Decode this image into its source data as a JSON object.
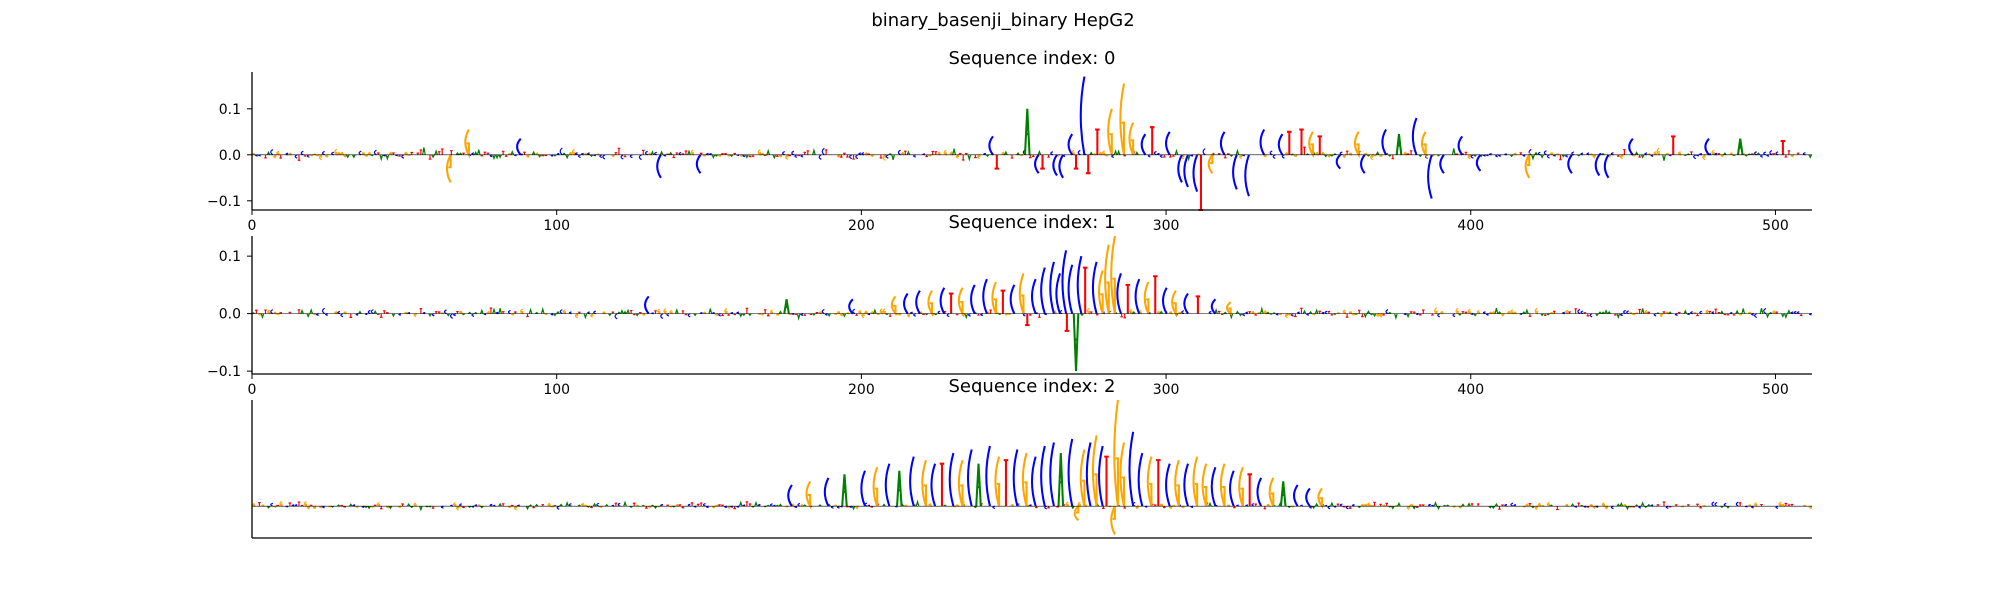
{
  "figure": {
    "title": "binary_basenji_binary HepG2"
  },
  "colors": {
    "A": "#008000",
    "C": "#0000ff",
    "G": "#ffa500",
    "T": "#ff0000",
    "axis": "#000000"
  },
  "chart_data": [
    {
      "type": "sequence-logo",
      "title": "Sequence index: 0",
      "xlim": [
        0,
        512
      ],
      "ylim": [
        -0.12,
        0.18
      ],
      "x_ticks": [
        0,
        100,
        200,
        300,
        400,
        500
      ],
      "y_ticks": [
        -0.1,
        0.0,
        0.1
      ],
      "y_tick_labels": [
        "−0.1",
        "0.0",
        "0.1"
      ],
      "grid": false,
      "length": 512,
      "background_amplitude": 0.012,
      "peaks": [
        {
          "x": 64,
          "value": -0.06,
          "base": "G"
        },
        {
          "x": 70,
          "value": 0.055,
          "base": "G"
        },
        {
          "x": 87,
          "value": 0.035,
          "base": "C"
        },
        {
          "x": 133,
          "value": -0.05,
          "base": "C"
        },
        {
          "x": 146,
          "value": -0.04,
          "base": "C"
        },
        {
          "x": 242,
          "value": 0.04,
          "base": "C"
        },
        {
          "x": 244,
          "value": -0.03,
          "base": "T"
        },
        {
          "x": 254,
          "value": 0.1,
          "base": "A"
        },
        {
          "x": 257,
          "value": -0.04,
          "base": "C"
        },
        {
          "x": 259,
          "value": -0.03,
          "base": "T"
        },
        {
          "x": 263,
          "value": -0.045,
          "base": "C"
        },
        {
          "x": 265,
          "value": -0.05,
          "base": "C"
        },
        {
          "x": 268,
          "value": 0.045,
          "base": "C"
        },
        {
          "x": 270,
          "value": -0.03,
          "base": "T"
        },
        {
          "x": 272,
          "value": 0.17,
          "base": "C"
        },
        {
          "x": 274,
          "value": -0.04,
          "base": "T"
        },
        {
          "x": 277,
          "value": 0.055,
          "base": "T"
        },
        {
          "x": 281,
          "value": 0.1,
          "base": "G"
        },
        {
          "x": 285,
          "value": 0.155,
          "base": "G"
        },
        {
          "x": 288,
          "value": 0.07,
          "base": "G"
        },
        {
          "x": 292,
          "value": 0.045,
          "base": "C"
        },
        {
          "x": 295,
          "value": 0.06,
          "base": "T"
        },
        {
          "x": 300,
          "value": 0.05,
          "base": "C"
        },
        {
          "x": 304,
          "value": -0.06,
          "base": "C"
        },
        {
          "x": 306,
          "value": -0.07,
          "base": "C"
        },
        {
          "x": 309,
          "value": -0.08,
          "base": "C"
        },
        {
          "x": 311,
          "value": -0.12,
          "base": "T"
        },
        {
          "x": 314,
          "value": -0.04,
          "base": "G"
        },
        {
          "x": 318,
          "value": 0.05,
          "base": "C"
        },
        {
          "x": 322,
          "value": -0.075,
          "base": "C"
        },
        {
          "x": 326,
          "value": -0.09,
          "base": "C"
        },
        {
          "x": 331,
          "value": 0.055,
          "base": "C"
        },
        {
          "x": 337,
          "value": 0.045,
          "base": "C"
        },
        {
          "x": 340,
          "value": 0.05,
          "base": "T"
        },
        {
          "x": 344,
          "value": 0.055,
          "base": "T"
        },
        {
          "x": 347,
          "value": 0.05,
          "base": "G"
        },
        {
          "x": 350,
          "value": 0.04,
          "base": "T"
        },
        {
          "x": 356,
          "value": -0.03,
          "base": "C"
        },
        {
          "x": 362,
          "value": 0.05,
          "base": "G"
        },
        {
          "x": 364,
          "value": -0.04,
          "base": "C"
        },
        {
          "x": 371,
          "value": 0.055,
          "base": "C"
        },
        {
          "x": 376,
          "value": 0.045,
          "base": "A"
        },
        {
          "x": 381,
          "value": 0.08,
          "base": "C"
        },
        {
          "x": 384,
          "value": 0.05,
          "base": "G"
        },
        {
          "x": 386,
          "value": -0.095,
          "base": "C"
        },
        {
          "x": 390,
          "value": -0.04,
          "base": "C"
        },
        {
          "x": 396,
          "value": 0.04,
          "base": "C"
        },
        {
          "x": 402,
          "value": -0.035,
          "base": "C"
        },
        {
          "x": 418,
          "value": -0.05,
          "base": "G"
        },
        {
          "x": 432,
          "value": -0.04,
          "base": "C"
        },
        {
          "x": 441,
          "value": -0.045,
          "base": "C"
        },
        {
          "x": 444,
          "value": -0.05,
          "base": "C"
        },
        {
          "x": 452,
          "value": 0.035,
          "base": "C"
        },
        {
          "x": 466,
          "value": 0.04,
          "base": "T"
        },
        {
          "x": 477,
          "value": 0.035,
          "base": "C"
        },
        {
          "x": 488,
          "value": 0.035,
          "base": "A"
        },
        {
          "x": 502,
          "value": 0.03,
          "base": "T"
        }
      ]
    },
    {
      "type": "sequence-logo",
      "title": "Sequence index: 1",
      "xlim": [
        0,
        512
      ],
      "ylim": [
        -0.105,
        0.135
      ],
      "x_ticks": [
        0,
        100,
        200,
        300,
        400,
        500
      ],
      "y_ticks": [
        -0.1,
        0.0,
        0.1
      ],
      "y_tick_labels": [
        "−0.1",
        "0.0",
        "0.1"
      ],
      "grid": false,
      "length": 512,
      "background_amplitude": 0.008,
      "peaks": [
        {
          "x": 129,
          "value": 0.03,
          "base": "C"
        },
        {
          "x": 175,
          "value": 0.025,
          "base": "A"
        },
        {
          "x": 196,
          "value": 0.025,
          "base": "C"
        },
        {
          "x": 210,
          "value": 0.03,
          "base": "G"
        },
        {
          "x": 214,
          "value": 0.035,
          "base": "C"
        },
        {
          "x": 218,
          "value": 0.04,
          "base": "C"
        },
        {
          "x": 222,
          "value": 0.04,
          "base": "G"
        },
        {
          "x": 226,
          "value": 0.045,
          "base": "C"
        },
        {
          "x": 229,
          "value": 0.035,
          "base": "T"
        },
        {
          "x": 232,
          "value": 0.045,
          "base": "G"
        },
        {
          "x": 236,
          "value": 0.05,
          "base": "C"
        },
        {
          "x": 240,
          "value": 0.06,
          "base": "C"
        },
        {
          "x": 243,
          "value": 0.055,
          "base": "G"
        },
        {
          "x": 246,
          "value": 0.04,
          "base": "T"
        },
        {
          "x": 249,
          "value": 0.05,
          "base": "C"
        },
        {
          "x": 252,
          "value": 0.07,
          "base": "G"
        },
        {
          "x": 254,
          "value": -0.02,
          "base": "T"
        },
        {
          "x": 256,
          "value": 0.06,
          "base": "C"
        },
        {
          "x": 259,
          "value": 0.08,
          "base": "C"
        },
        {
          "x": 262,
          "value": 0.09,
          "base": "C"
        },
        {
          "x": 264,
          "value": 0.07,
          "base": "C"
        },
        {
          "x": 266,
          "value": 0.11,
          "base": "C"
        },
        {
          "x": 267,
          "value": -0.03,
          "base": "T"
        },
        {
          "x": 268,
          "value": 0.085,
          "base": "C"
        },
        {
          "x": 270,
          "value": -0.1,
          "base": "A"
        },
        {
          "x": 271,
          "value": 0.1,
          "base": "C"
        },
        {
          "x": 273,
          "value": 0.08,
          "base": "T"
        },
        {
          "x": 276,
          "value": 0.09,
          "base": "C"
        },
        {
          "x": 278,
          "value": 0.075,
          "base": "G"
        },
        {
          "x": 280,
          "value": 0.12,
          "base": "G"
        },
        {
          "x": 282,
          "value": 0.135,
          "base": "G"
        },
        {
          "x": 284,
          "value": 0.07,
          "base": "C"
        },
        {
          "x": 287,
          "value": 0.05,
          "base": "T"
        },
        {
          "x": 290,
          "value": 0.06,
          "base": "C"
        },
        {
          "x": 293,
          "value": 0.055,
          "base": "G"
        },
        {
          "x": 296,
          "value": 0.065,
          "base": "T"
        },
        {
          "x": 299,
          "value": 0.045,
          "base": "C"
        },
        {
          "x": 302,
          "value": 0.04,
          "base": "G"
        },
        {
          "x": 306,
          "value": 0.035,
          "base": "C"
        },
        {
          "x": 310,
          "value": 0.03,
          "base": "T"
        },
        {
          "x": 315,
          "value": 0.025,
          "base": "C"
        },
        {
          "x": 320,
          "value": 0.02,
          "base": "G"
        }
      ]
    },
    {
      "type": "sequence-logo",
      "title": "Sequence index: 2",
      "xlim": [
        0,
        512
      ],
      "ylim": [
        -0.045,
        0.15
      ],
      "x_ticks": [],
      "y_ticks": [],
      "grid": false,
      "length": 512,
      "background_amplitude": 0.005,
      "peaks": [
        {
          "x": 176,
          "value": 0.03,
          "base": "C"
        },
        {
          "x": 182,
          "value": 0.035,
          "base": "G"
        },
        {
          "x": 188,
          "value": 0.04,
          "base": "C"
        },
        {
          "x": 194,
          "value": 0.045,
          "base": "A"
        },
        {
          "x": 200,
          "value": 0.05,
          "base": "C"
        },
        {
          "x": 204,
          "value": 0.055,
          "base": "G"
        },
        {
          "x": 208,
          "value": 0.06,
          "base": "C"
        },
        {
          "x": 212,
          "value": 0.05,
          "base": "A"
        },
        {
          "x": 216,
          "value": 0.07,
          "base": "C"
        },
        {
          "x": 220,
          "value": 0.065,
          "base": "G"
        },
        {
          "x": 223,
          "value": 0.06,
          "base": "C"
        },
        {
          "x": 226,
          "value": 0.06,
          "base": "T"
        },
        {
          "x": 229,
          "value": 0.075,
          "base": "C"
        },
        {
          "x": 232,
          "value": 0.065,
          "base": "G"
        },
        {
          "x": 235,
          "value": 0.08,
          "base": "C"
        },
        {
          "x": 238,
          "value": 0.06,
          "base": "A"
        },
        {
          "x": 241,
          "value": 0.085,
          "base": "C"
        },
        {
          "x": 244,
          "value": 0.07,
          "base": "G"
        },
        {
          "x": 247,
          "value": 0.065,
          "base": "T"
        },
        {
          "x": 250,
          "value": 0.08,
          "base": "C"
        },
        {
          "x": 253,
          "value": 0.075,
          "base": "G"
        },
        {
          "x": 256,
          "value": 0.07,
          "base": "C"
        },
        {
          "x": 259,
          "value": 0.085,
          "base": "C"
        },
        {
          "x": 262,
          "value": 0.09,
          "base": "C"
        },
        {
          "x": 265,
          "value": 0.075,
          "base": "A"
        },
        {
          "x": 268,
          "value": 0.095,
          "base": "C"
        },
        {
          "x": 270,
          "value": -0.02,
          "base": "G"
        },
        {
          "x": 272,
          "value": 0.08,
          "base": "G"
        },
        {
          "x": 274,
          "value": 0.09,
          "base": "C"
        },
        {
          "x": 276,
          "value": 0.1,
          "base": "G"
        },
        {
          "x": 278,
          "value": 0.085,
          "base": "C"
        },
        {
          "x": 280,
          "value": 0.07,
          "base": "T"
        },
        {
          "x": 282,
          "value": -0.04,
          "base": "G"
        },
        {
          "x": 283,
          "value": 0.15,
          "base": "G"
        },
        {
          "x": 285,
          "value": 0.09,
          "base": "G"
        },
        {
          "x": 288,
          "value": 0.105,
          "base": "C"
        },
        {
          "x": 291,
          "value": 0.075,
          "base": "C"
        },
        {
          "x": 294,
          "value": 0.07,
          "base": "G"
        },
        {
          "x": 297,
          "value": 0.065,
          "base": "T"
        },
        {
          "x": 300,
          "value": 0.06,
          "base": "C"
        },
        {
          "x": 303,
          "value": 0.065,
          "base": "G"
        },
        {
          "x": 306,
          "value": 0.06,
          "base": "C"
        },
        {
          "x": 309,
          "value": 0.07,
          "base": "G"
        },
        {
          "x": 312,
          "value": 0.06,
          "base": "G"
        },
        {
          "x": 315,
          "value": 0.055,
          "base": "C"
        },
        {
          "x": 318,
          "value": 0.06,
          "base": "G"
        },
        {
          "x": 321,
          "value": 0.05,
          "base": "C"
        },
        {
          "x": 324,
          "value": 0.055,
          "base": "G"
        },
        {
          "x": 327,
          "value": 0.045,
          "base": "T"
        },
        {
          "x": 330,
          "value": 0.04,
          "base": "C"
        },
        {
          "x": 334,
          "value": 0.04,
          "base": "G"
        },
        {
          "x": 338,
          "value": 0.035,
          "base": "A"
        },
        {
          "x": 342,
          "value": 0.03,
          "base": "C"
        },
        {
          "x": 346,
          "value": 0.025,
          "base": "C"
        },
        {
          "x": 350,
          "value": 0.025,
          "base": "G"
        }
      ]
    }
  ]
}
